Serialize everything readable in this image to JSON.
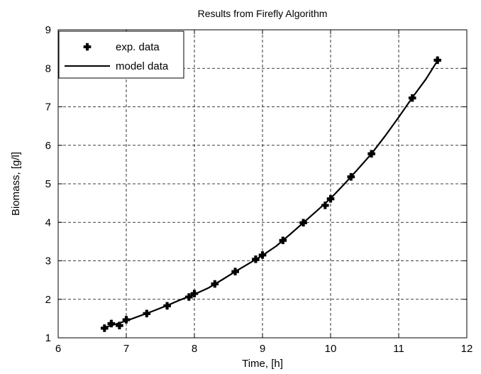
{
  "chart_data": {
    "type": "line",
    "title": "Results from Firefly Algorithm",
    "xlabel": "Time, [h]",
    "ylabel": "Biomass, [g/l]",
    "xlim": [
      6,
      12
    ],
    "ylim": [
      1,
      9
    ],
    "xticks": [
      6,
      7,
      8,
      9,
      10,
      11,
      12
    ],
    "yticks": [
      1,
      2,
      3,
      4,
      5,
      6,
      7,
      8,
      9
    ],
    "grid": true,
    "grid_style": "dashed",
    "legend_position": "top-left",
    "series": [
      {
        "name": "exp. data",
        "style": "markers",
        "marker": "plus-bold",
        "color": "#000000",
        "x": [
          6.68,
          6.78,
          6.9,
          7.0,
          7.3,
          7.6,
          7.92,
          8.0,
          8.3,
          8.6,
          8.9,
          9.0,
          9.3,
          9.6,
          9.92,
          10.0,
          10.3,
          10.6,
          11.2,
          11.57
        ],
        "y": [
          1.25,
          1.37,
          1.32,
          1.47,
          1.63,
          1.83,
          2.06,
          2.15,
          2.4,
          2.72,
          3.04,
          3.15,
          3.53,
          3.99,
          4.44,
          4.61,
          5.18,
          5.78,
          7.23,
          8.21
        ]
      },
      {
        "name": "model data",
        "style": "line",
        "color": "#000000",
        "x": [
          6.68,
          6.8,
          7.0,
          7.2,
          7.4,
          7.6,
          7.8,
          8.0,
          8.2,
          8.4,
          8.6,
          8.8,
          9.0,
          9.2,
          9.4,
          9.6,
          9.8,
          10.0,
          10.2,
          10.4,
          10.6,
          10.8,
          11.0,
          11.2,
          11.4,
          11.57
        ],
        "y": [
          1.27,
          1.33,
          1.44,
          1.57,
          1.7,
          1.84,
          1.99,
          2.13,
          2.29,
          2.5,
          2.72,
          2.93,
          3.14,
          3.38,
          3.68,
          3.99,
          4.3,
          4.62,
          4.99,
          5.38,
          5.78,
          6.24,
          6.73,
          7.24,
          7.72,
          8.2
        ]
      }
    ]
  }
}
